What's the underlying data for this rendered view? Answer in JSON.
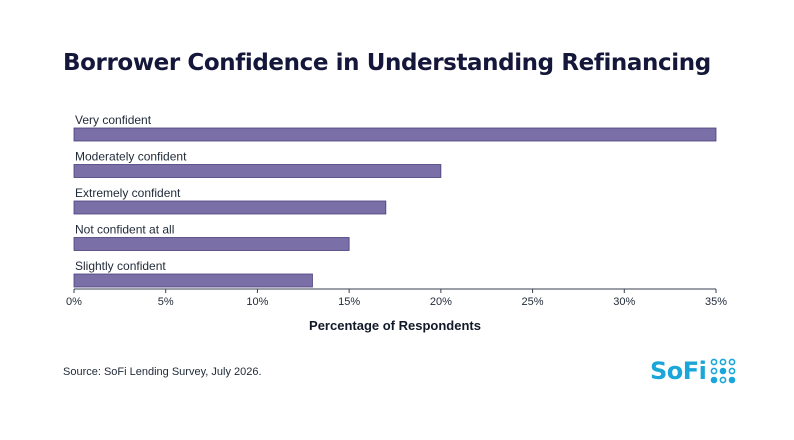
{
  "title": "Borrower Confidence in Understanding Refinancing",
  "source": "Source: SoFi Lending Survey, July 2026.",
  "logo": {
    "text": "SoFi",
    "icon": "sofi-dots-icon",
    "color": "#1aa6d9"
  },
  "chart_data": {
    "type": "bar",
    "orientation": "horizontal",
    "categories": [
      "Very confident",
      "Moderately confident",
      "Extremely confident",
      "Not confident at all",
      "Slightly confident"
    ],
    "values": [
      35,
      20,
      17,
      15,
      13
    ],
    "xlabel": "Percentage of Respondents",
    "ylabel": "",
    "xlim": [
      0,
      35
    ],
    "xticks": [
      0,
      5,
      10,
      15,
      20,
      25,
      30,
      35
    ],
    "xtick_labels": [
      "0%",
      "5%",
      "10%",
      "15%",
      "20%",
      "25%",
      "30%",
      "35%"
    ],
    "bar_color": "#7b6fa8",
    "bar_border": "#4a3f7a",
    "grid": false,
    "legend": "none"
  }
}
